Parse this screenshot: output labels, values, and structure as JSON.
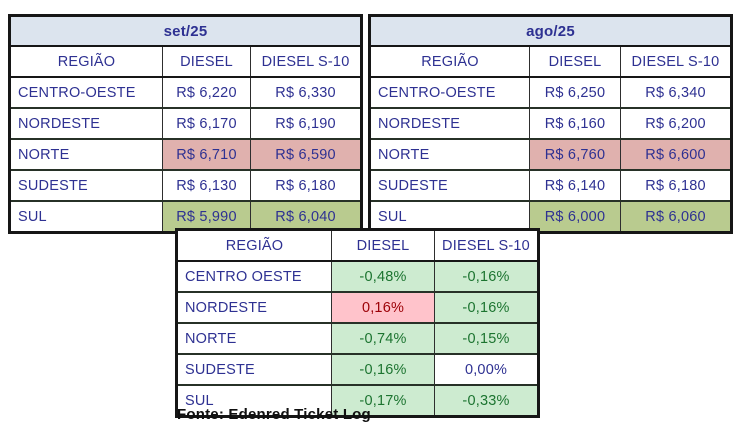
{
  "colors": {
    "navy": "#2e3192",
    "title_fill": "#dce4ee",
    "max_fill": "#e0b1ae",
    "min_fill": "#b9cb8f",
    "down_fill": "#cdebd0",
    "down_text": "#1c7430",
    "up_fill": "#ffc3cb",
    "up_text": "#9c0006",
    "border_strong": "#161616",
    "border_thin": "#2e2e2e",
    "border_row": "#273127"
  },
  "chart_data": [
    {
      "type": "table",
      "title": "set/25",
      "columns": [
        "REGIÃO",
        "DIESEL",
        "DIESEL S-10"
      ],
      "rows": [
        [
          "CENTRO-OESTE",
          "R$ 6,220",
          "R$ 6,330"
        ],
        [
          "NORDESTE",
          "R$ 6,170",
          "R$ 6,190"
        ],
        [
          "NORTE",
          "R$ 6,710",
          "R$ 6,590"
        ],
        [
          "SUDESTE",
          "R$ 6,130",
          "R$ 6,180"
        ],
        [
          "SUL",
          "R$ 5,990",
          "R$ 6,040"
        ]
      ],
      "row_highlights": [
        "none",
        "none",
        "max",
        "none",
        "min"
      ],
      "highlight_legend": {
        "max": "highest price (rose)",
        "min": "lowest price (olive green)"
      }
    },
    {
      "type": "table",
      "title": "ago/25",
      "columns": [
        "REGIÃO",
        "DIESEL",
        "DIESEL S-10"
      ],
      "rows": [
        [
          "CENTRO-OESTE",
          "R$ 6,250",
          "R$ 6,340"
        ],
        [
          "NORDESTE",
          "R$ 6,160",
          "R$ 6,200"
        ],
        [
          "NORTE",
          "R$ 6,760",
          "R$ 6,600"
        ],
        [
          "SUDESTE",
          "R$ 6,140",
          "R$ 6,180"
        ],
        [
          "SUL",
          "R$ 6,000",
          "R$ 6,060"
        ]
      ],
      "row_highlights": [
        "none",
        "none",
        "max",
        "none",
        "min"
      ],
      "highlight_legend": {
        "max": "highest price (rose)",
        "min": "lowest price (olive green)"
      }
    },
    {
      "type": "table",
      "title": "",
      "columns": [
        "REGIÃO",
        "DIESEL",
        "DIESEL S-10"
      ],
      "rows": [
        [
          "CENTRO OESTE",
          "-0,48%",
          "-0,16%"
        ],
        [
          "NORDESTE",
          "0,16%",
          "-0,16%"
        ],
        [
          "NORTE",
          "-0,74%",
          "-0,15%"
        ],
        [
          "SUDESTE",
          "-0,16%",
          "0,00%"
        ],
        [
          "SUL",
          "-0,17%",
          "-0,33%"
        ]
      ],
      "cell_styles": [
        [
          "down",
          "down"
        ],
        [
          "up",
          "down"
        ],
        [
          "down",
          "down"
        ],
        [
          "down",
          "flat"
        ],
        [
          "down",
          "down"
        ]
      ],
      "style_legend": {
        "down": "price decrease (green)",
        "up": "price increase (pink)",
        "flat": "no change (white)"
      }
    }
  ],
  "footer": {
    "source": "Fonte: Edenred Ticket Log"
  }
}
